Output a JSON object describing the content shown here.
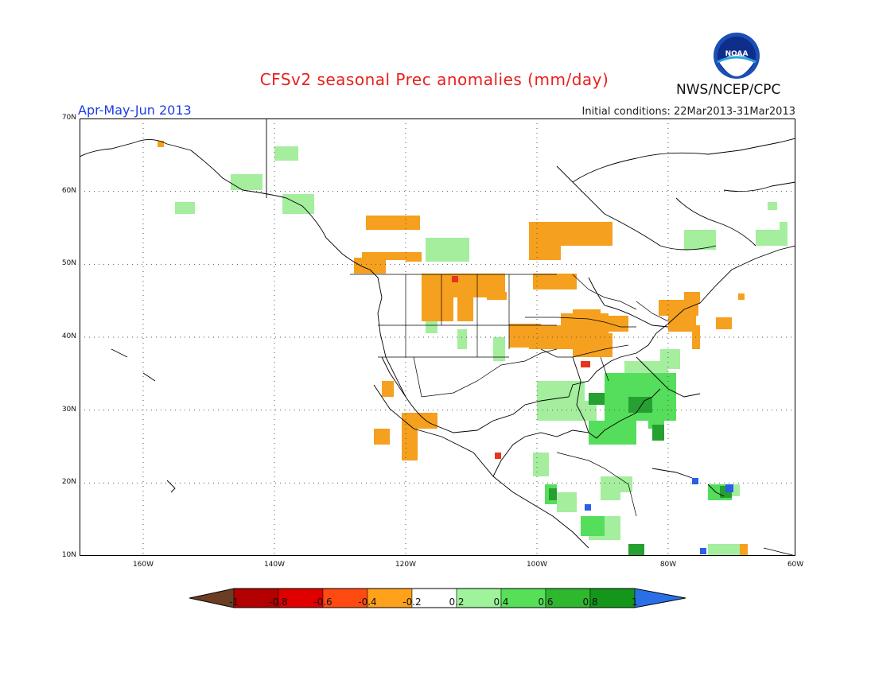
{
  "header": {
    "title": "CFSv2 seasonal Prec anomalies (mm/day)",
    "season": "Apr-May-Jun 2013",
    "initial_conditions": "Initial conditions: 22Mar2013-31Mar2013",
    "agency": "NWS/NCEP/CPC",
    "logo_text": "NOAA"
  },
  "map": {
    "lat_labels": [
      "70N",
      "60N",
      "50N",
      "40N",
      "30N",
      "20N",
      "10N"
    ],
    "lon_labels": [
      "160W",
      "140W",
      "120W",
      "100W",
      "80W",
      "60W"
    ],
    "extent": {
      "lon": [
        -170,
        -60
      ],
      "lat": [
        10,
        70
      ]
    }
  },
  "legend": {
    "labels": [
      "-1",
      "-0.8",
      "-0.6",
      "-0.4",
      "-0.2",
      "0.2",
      "0.4",
      "0.6",
      "0.8",
      "1"
    ],
    "colors": [
      "#6b3d22",
      "#b30000",
      "#e00000",
      "#ff4a12",
      "#ffa11a",
      "#ffffff",
      "#9ff39a",
      "#55e058",
      "#2eb82e",
      "#13961a",
      "#2a6fe6"
    ]
  },
  "anomaly_colors": {
    "dry_moderate": "#f5a01e",
    "dry_strong": "#e8341c",
    "wet_light": "#a4ee9e",
    "wet_moderate": "#55dd5c",
    "wet_strong": "#26a030",
    "wet_extreme": "#2a5fe6"
  }
}
